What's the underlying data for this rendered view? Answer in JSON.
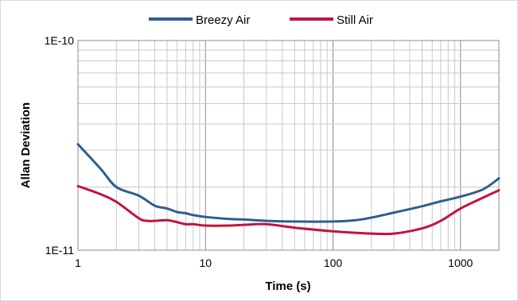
{
  "chart_data": {
    "type": "line",
    "xlabel": "Time (s)",
    "ylabel": "Allan Deviation",
    "x_scale": "log",
    "y_scale": "log",
    "xlim": [
      1,
      2000
    ],
    "ylim": [
      1e-11,
      1e-10
    ],
    "x_ticks": [
      {
        "value": 1,
        "label": "1"
      },
      {
        "value": 10,
        "label": "10"
      },
      {
        "value": 100,
        "label": "100"
      },
      {
        "value": 1000,
        "label": "1000"
      }
    ],
    "y_ticks": [
      {
        "value": 1e-11,
        "label": "1E-11"
      },
      {
        "value": 1e-10,
        "label": "1E-10"
      }
    ],
    "grid": true,
    "legend_position": "top",
    "series": [
      {
        "name": "Breezy Air",
        "color": "#2e5e8e",
        "x": [
          1,
          1.5,
          2,
          3,
          4,
          5,
          6,
          7,
          8,
          10,
          15,
          20,
          30,
          50,
          100,
          150,
          200,
          300,
          500,
          700,
          1000,
          1500,
          2000
        ],
        "y": [
          3.2e-11,
          2.45e-11,
          2e-11,
          1.82e-11,
          1.63e-11,
          1.58e-11,
          1.52e-11,
          1.5e-11,
          1.47e-11,
          1.44e-11,
          1.41e-11,
          1.4e-11,
          1.38e-11,
          1.37e-11,
          1.37e-11,
          1.39e-11,
          1.43e-11,
          1.51e-11,
          1.62e-11,
          1.71e-11,
          1.8e-11,
          1.95e-11,
          2.2e-11
        ]
      },
      {
        "name": "Still Air",
        "color": "#c0143c",
        "x": [
          1,
          1.5,
          2,
          3,
          3.5,
          4,
          5,
          6,
          7,
          8,
          10,
          15,
          20,
          30,
          50,
          100,
          150,
          200,
          300,
          500,
          700,
          1000,
          1500,
          2000
        ],
        "y": [
          2.02e-11,
          1.85e-11,
          1.7e-11,
          1.42e-11,
          1.38e-11,
          1.38e-11,
          1.39e-11,
          1.36e-11,
          1.33e-11,
          1.33e-11,
          1.31e-11,
          1.31e-11,
          1.32e-11,
          1.33e-11,
          1.28e-11,
          1.23e-11,
          1.21e-11,
          1.2e-11,
          1.2e-11,
          1.27e-11,
          1.38e-11,
          1.58e-11,
          1.78e-11,
          1.93e-11
        ]
      }
    ]
  }
}
